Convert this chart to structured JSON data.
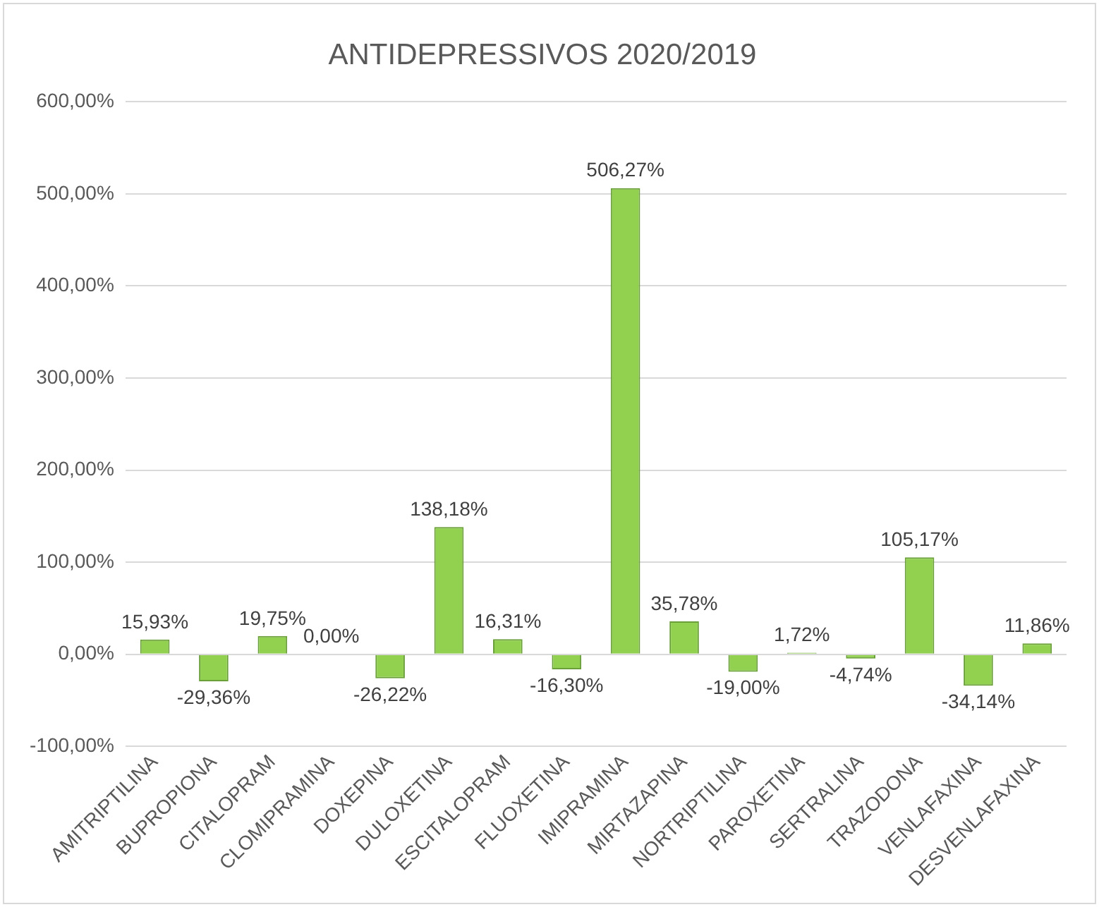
{
  "chart_data": {
    "type": "bar",
    "title": "ANTIDEPRESSIVOS 2020/2019",
    "categories": [
      "AMITRIPTILINA",
      "BUPROPIONA",
      "CITALOPRAM",
      "CLOMIPRAMINA",
      "DOXEPINA",
      "DULOXETINA",
      "ESCITALOPRAM",
      "FLUOXETINA",
      "IMIPRAMINA",
      "MIRTAZAPINA",
      "NORTRIPTILINA",
      "PAROXETINA",
      "SERTRALINA",
      "TRAZODONA",
      "VENLAFAXINA",
      "DESVENLAFAXINA"
    ],
    "values": [
      15.93,
      -29.36,
      19.75,
      0,
      -26.22,
      138.18,
      16.31,
      -16.3,
      506.27,
      35.78,
      -19,
      1.72,
      -4.74,
      105.17,
      -34.14,
      11.86
    ],
    "value_labels": [
      "15,93%",
      "-29,36%",
      "19,75%",
      "0,00%",
      "-26,22%",
      "138,18%",
      "16,31%",
      "-16,30%",
      "506,27%",
      "35,78%",
      "-19,00%",
      "1,72%",
      "-4,74%",
      "105,17%",
      "-34,14%",
      "11,86%"
    ],
    "color": "#92d050",
    "ylim": [
      -100,
      600
    ],
    "yticks": [
      {
        "value": -100,
        "label": "-100,00%"
      },
      {
        "value": 0,
        "label": "0,00%"
      },
      {
        "value": 100,
        "label": "100,00%"
      },
      {
        "value": 200,
        "label": "200,00%"
      },
      {
        "value": 300,
        "label": "300,00%"
      },
      {
        "value": 400,
        "label": "400,00%"
      },
      {
        "value": 500,
        "label": "500,00%"
      },
      {
        "value": 600,
        "label": "600,00%"
      }
    ],
    "grid": "y",
    "legend": false
  }
}
